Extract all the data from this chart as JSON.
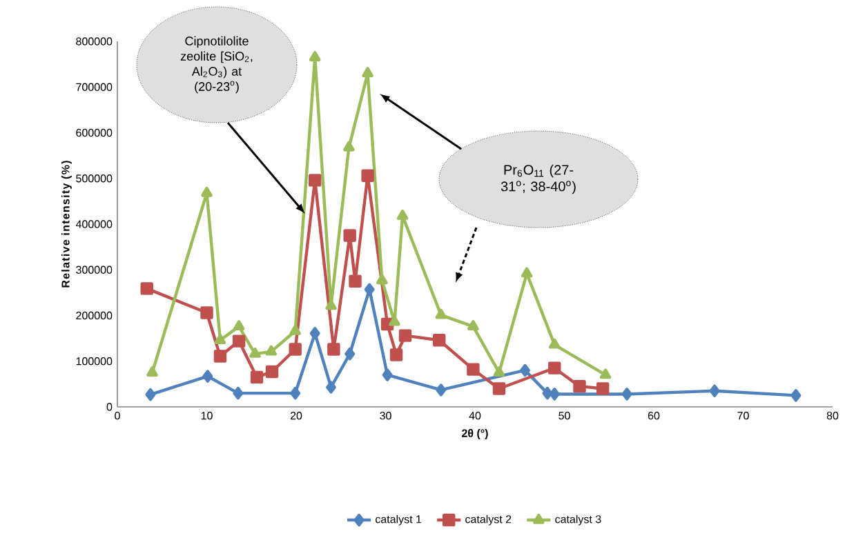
{
  "chart_data": {
    "type": "line",
    "xlabel": "2θ (°)",
    "ylabel": "Relative intensity (%)",
    "xlim": [
      0,
      80
    ],
    "xticks": [
      0,
      10,
      20,
      30,
      40,
      50,
      60,
      70,
      80
    ],
    "ylim": [
      0,
      800000
    ],
    "yticks": [
      0,
      100000,
      200000,
      300000,
      400000,
      500000,
      600000,
      700000,
      800000
    ],
    "grid": false,
    "legend": "bottom",
    "line_style": "solid",
    "series": [
      {
        "name": "catalyst 1",
        "color": "#4f81bd",
        "marker": "diamond",
        "x": [
          3.7,
          10.1,
          13.5,
          19.9,
          22.1,
          23.9,
          26,
          28.2,
          30.2,
          32.2,
          36.2,
          45.6,
          48.1,
          48.9,
          57,
          66.8,
          75.9
        ],
        "values": [
          27000,
          67000,
          30000,
          30000,
          161000,
          43000,
          116000,
          257000,
          70000,
          null,
          37000,
          80000,
          30000,
          28000,
          28000,
          35000,
          25000
        ]
      },
      {
        "name": "catalyst 2",
        "color": "#c0504d",
        "marker": "square",
        "x": [
          3.3,
          10,
          11.5,
          13.6,
          15.6,
          17.3,
          19.9,
          22.1,
          24.2,
          26,
          26.6,
          28,
          30.2,
          31.2,
          32.2,
          36,
          39.8,
          42.7,
          48.9,
          51.7,
          54.3
        ],
        "values": [
          259000,
          206000,
          111000,
          144000,
          65000,
          77000,
          126000,
          496000,
          126000,
          375000,
          275000,
          506000,
          181000,
          114000,
          156000,
          146000,
          82000,
          40000,
          85000,
          45000,
          40000
        ]
      },
      {
        "name": "catalyst 3",
        "color": "#9bbb59",
        "marker": "triangle",
        "x": [
          3.9,
          10,
          11.5,
          13.6,
          15.4,
          17.2,
          19.9,
          22.1,
          23.9,
          25.9,
          28,
          29.6,
          31,
          31.9,
          36.2,
          39.8,
          42.7,
          45.8,
          48.9,
          54.6
        ],
        "values": [
          75000,
          468000,
          146000,
          176000,
          116000,
          121000,
          166000,
          765000,
          221000,
          568000,
          730000,
          277000,
          186000,
          418000,
          201000,
          176000,
          75000,
          292000,
          136000,
          70000
        ]
      }
    ],
    "annotations": [
      "Cipnotilolite zeolite [SiO$_{2}$, Al$_{2}$O$_{3}$) at (20-23$^{o}$)",
      "Pr$_{6}$O$_{11}$ (27-31$^{o}$; 38-40$^{o}$)"
    ]
  }
}
